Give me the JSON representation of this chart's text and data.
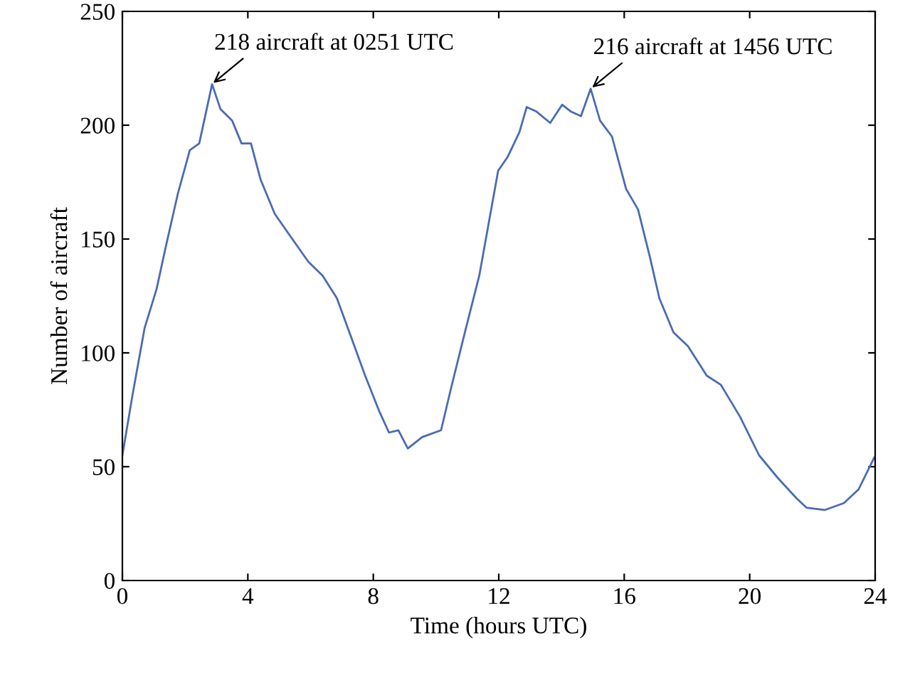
{
  "chart_data": {
    "type": "line",
    "xlabel": "Time (hours UTC)",
    "ylabel": "Number of aircraft",
    "xlim": [
      0,
      24
    ],
    "ylim": [
      0,
      250
    ],
    "xticks": [
      0,
      4,
      8,
      12,
      16,
      20,
      24
    ],
    "yticks": [
      0,
      50,
      100,
      150,
      200,
      250
    ],
    "grid": false,
    "marker": "none",
    "line_style": "solid",
    "series": [
      {
        "color": "#4a6bb5",
        "x": [
          0,
          0.33,
          0.71,
          1.09,
          1.39,
          1.77,
          2.15,
          2.45,
          2.86,
          3.13,
          3.5,
          3.8,
          4.1,
          4.41,
          4.86,
          5.47,
          5.93,
          6.38,
          6.84,
          7.29,
          7.74,
          8.2,
          8.5,
          8.8,
          9.1,
          9.56,
          10.16,
          10.47,
          10.92,
          11.38,
          11.68,
          11.98,
          12.28,
          12.66,
          12.89,
          13.2,
          13.64,
          14.02,
          14.3,
          14.62,
          14.93,
          15.23,
          15.61,
          16.06,
          16.44,
          16.82,
          17.12,
          17.57,
          18.03,
          18.63,
          19.08,
          19.69,
          20.3,
          20.9,
          21.5,
          21.81,
          22.4,
          23,
          23.47,
          23.97
        ],
        "values": [
          55,
          82,
          111,
          128,
          147,
          170,
          189,
          192,
          218,
          207,
          202,
          192,
          192,
          176,
          161,
          149,
          140,
          134,
          124,
          107,
          90,
          74,
          65,
          66,
          58,
          63,
          66,
          84,
          109,
          134,
          157,
          180,
          186,
          197,
          208,
          206,
          201,
          209,
          206,
          204,
          216,
          202,
          195,
          172,
          163,
          142,
          124,
          109,
          103,
          90,
          86,
          72,
          55,
          45,
          36,
          32,
          31,
          34,
          40,
          54
        ]
      }
    ],
    "annotations": [
      {
        "text": "218 aircraft at 0251 UTC",
        "x": 2.85,
        "y": 218
      },
      {
        "text": "216 aircraft at 1456 UTC",
        "x": 14.93,
        "y": 216
      }
    ]
  }
}
